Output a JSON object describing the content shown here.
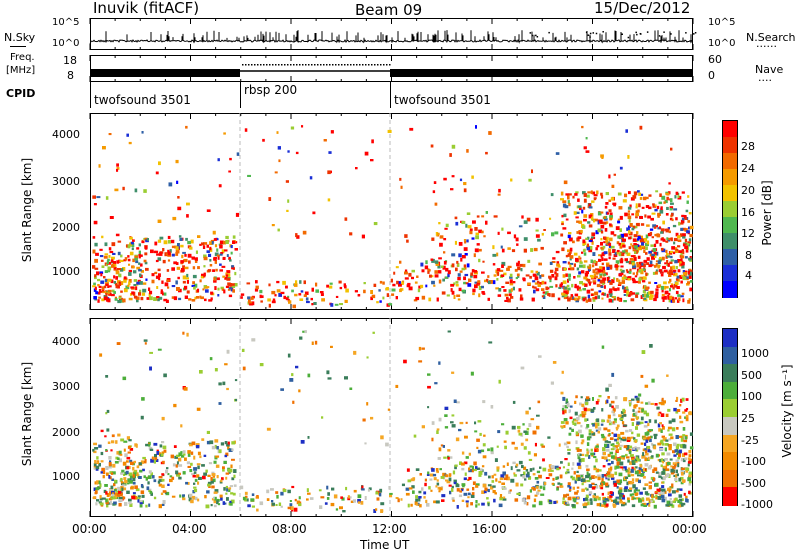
{
  "header": {
    "station": "Inuvik (fitACF)",
    "beam": "Beam 09",
    "date": "15/Dec/2012"
  },
  "nsky_panel": {
    "left_label": "N.Sky",
    "left_ticks": [
      "10^5",
      "10^0"
    ],
    "right_ticks": [
      "10^5",
      "10^0"
    ],
    "right_label": "N.Search",
    "right_legend": "......"
  },
  "freq_panel": {
    "left_label_1": "Freq.",
    "left_label_2": "[MHz]",
    "left_ticks": [
      "18",
      "8"
    ],
    "right_ticks": [
      "60",
      "0"
    ],
    "right_label": "Nave",
    "right_legend": "...."
  },
  "cpid_panel": {
    "label": "CPID",
    "segments": [
      "twofsound 3501",
      "rbsp 200",
      "twofsound 3501"
    ]
  },
  "chart_data": [
    {
      "type": "heatmap",
      "ylabel": "Slant Range [km]",
      "yticks": [
        "4000",
        "3000",
        "2000",
        "1000"
      ],
      "ylim": [
        180,
        4500
      ],
      "colorbar_label": "Power [dB]",
      "colorbar_ticks": [
        "28",
        "24",
        "20",
        "16",
        "12",
        "8",
        "4"
      ],
      "colorbar_colors": [
        "#ff0000",
        "#ee3300",
        "#f26a00",
        "#f59a00",
        "#f2c200",
        "#9acd32",
        "#4fb84f",
        "#3f8f6a",
        "#2e5fa6",
        "#1a2fd6",
        "#0000ff"
      ]
    },
    {
      "type": "heatmap",
      "ylabel": "Slant Range [km]",
      "yticks": [
        "4000",
        "3000",
        "2000",
        "1000"
      ],
      "ylim": [
        180,
        4500
      ],
      "xlabel": "Time UT",
      "xticks": [
        "00:00",
        "04:00",
        "08:00",
        "12:00",
        "16:00",
        "20:00",
        "00:00"
      ],
      "colorbar_label": "Velocity [m s⁻¹]",
      "colorbar_ticks": [
        "1000",
        "500",
        "100",
        "25",
        "-25",
        "-100",
        "-500",
        "-1000"
      ],
      "colorbar_colors": [
        "#1d2fc4",
        "#2f5fa0",
        "#3a7d5a",
        "#4cae3a",
        "#9acd32",
        "#c8c8c0",
        "#f5a623",
        "#f28a00",
        "#f07000",
        "#ff0000"
      ]
    }
  ]
}
